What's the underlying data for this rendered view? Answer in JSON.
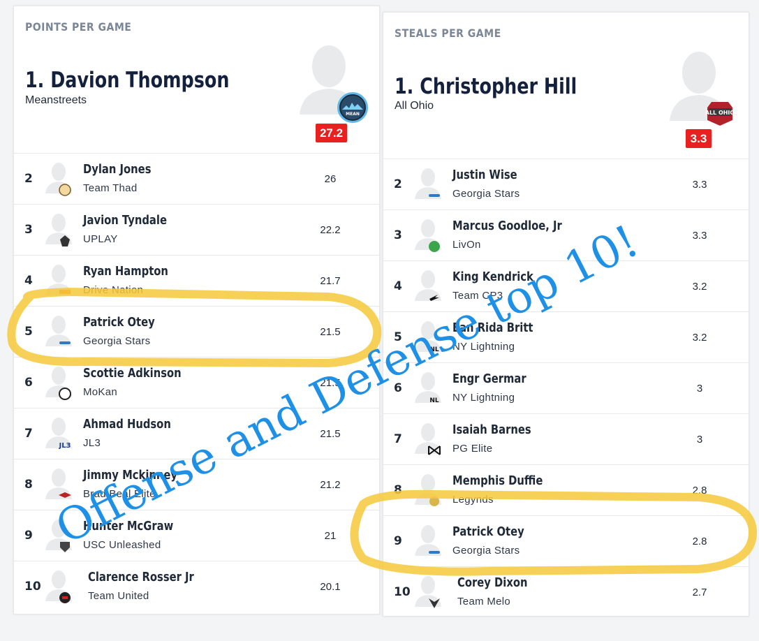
{
  "left_card": {
    "title": "POINTS PER GAME",
    "leader": {
      "name": "1. Davion Thompson",
      "team": "Meanstreets",
      "stat": "27.2",
      "logo_icon": "meanstreets-logo-icon"
    },
    "rows": [
      {
        "rank": "2",
        "name": "Dylan Jones",
        "team": "Team Thad",
        "value": "26",
        "logo_icon": "team-thad-logo-icon"
      },
      {
        "rank": "3",
        "name": "Javion Tyndale",
        "team": "UPLAY",
        "value": "22.2",
        "logo_icon": "uplay-logo-icon"
      },
      {
        "rank": "4",
        "name": "Ryan Hampton",
        "team": "Drive Nation",
        "value": "21.7",
        "logo_icon": "drive-nation-logo-icon"
      },
      {
        "rank": "5",
        "name": "Patrick Otey",
        "team": "Georgia Stars",
        "value": "21.5",
        "logo_icon": "georgia-stars-logo-icon"
      },
      {
        "rank": "6",
        "name": "Scottie Adkinson",
        "team": "MoKan",
        "value": "21.5",
        "logo_icon": "mokan-logo-icon"
      },
      {
        "rank": "7",
        "name": "Ahmad Hudson",
        "team": "JL3",
        "value": "21.5",
        "logo_icon": "jl3-logo-icon"
      },
      {
        "rank": "8",
        "name": "Jimmy Mckinney",
        "team": "Brad Beal Elite",
        "value": "21.2",
        "logo_icon": "brad-beal-elite-logo-icon"
      },
      {
        "rank": "9",
        "name": "Hunter McGraw",
        "team": "USC Unleashed",
        "value": "21",
        "logo_icon": "usc-unleashed-logo-icon"
      },
      {
        "rank": "10",
        "name": "Clarence Rosser Jr",
        "team": "Team United",
        "value": "20.1",
        "logo_icon": "team-united-logo-icon"
      }
    ]
  },
  "right_card": {
    "title": "STEALS PER GAME",
    "leader": {
      "name": "1. Christopher Hill",
      "team": "All Ohio",
      "stat": "3.3",
      "logo_icon": "all-ohio-logo-icon"
    },
    "rows": [
      {
        "rank": "2",
        "name": "Justin Wise",
        "team": "Georgia Stars",
        "value": "3.3",
        "logo_icon": "georgia-stars-logo-icon"
      },
      {
        "rank": "3",
        "name": "Marcus Goodloe, Jr",
        "team": "LivOn",
        "value": "3.3",
        "logo_icon": "livon-logo-icon"
      },
      {
        "rank": "4",
        "name": "King Kendrick",
        "team": "Team CP3",
        "value": "3.2",
        "logo_icon": "team-cp3-logo-icon"
      },
      {
        "rank": "5",
        "name": "Ean Rida Britt",
        "team": "NY Lightning",
        "value": "3.2",
        "logo_icon": "ny-lightning-logo-icon"
      },
      {
        "rank": "6",
        "name": "Engr Germar",
        "team": "NY Lightning",
        "value": "3",
        "logo_icon": "ny-lightning-logo-icon"
      },
      {
        "rank": "7",
        "name": "Isaiah Barnes",
        "team": "PG Elite",
        "value": "3",
        "logo_icon": "pg-elite-logo-icon"
      },
      {
        "rank": "8",
        "name": "Memphis Duffie",
        "team": "Legynds",
        "value": "2.8",
        "logo_icon": "legynds-logo-icon"
      },
      {
        "rank": "9",
        "name": "Patrick Otey",
        "team": "Georgia Stars",
        "value": "2.8",
        "logo_icon": "georgia-stars-logo-icon"
      },
      {
        "rank": "10",
        "name": "Corey Dixon",
        "team": "Team Melo",
        "value": "2.7",
        "logo_icon": "team-melo-logo-icon"
      }
    ]
  },
  "overlay": {
    "caption": "Offense and Defense top 10!",
    "caption_color": "#1e90e6",
    "highlight_color": "#f6c93a"
  },
  "colors": {
    "badge": "#e8201f",
    "title_gray": "#7b8696",
    "leader_name": "#14213d"
  }
}
